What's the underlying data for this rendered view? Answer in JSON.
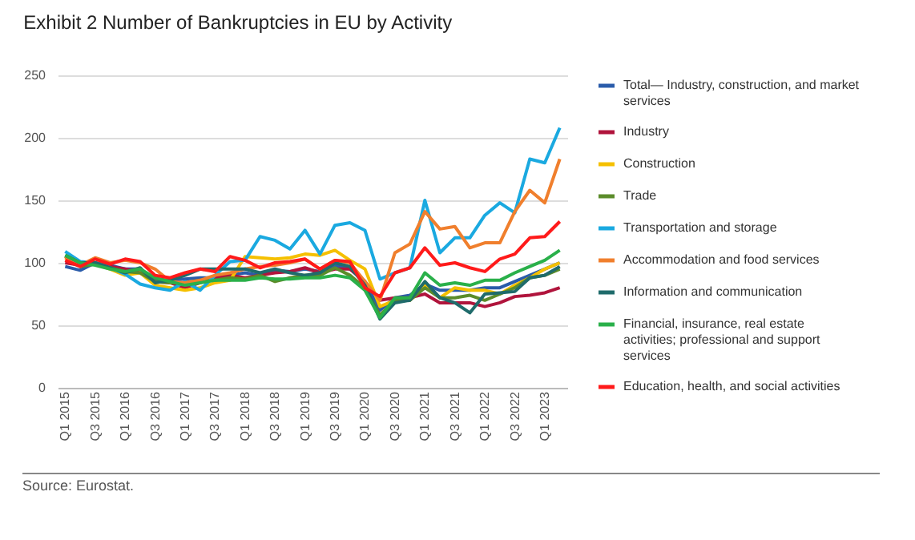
{
  "chart_data": {
    "type": "line",
    "title": "Exhibit 2  Number of Bankruptcies in EU by Activity",
    "annotations": [
      "Source: Eurostat."
    ],
    "categories": [
      "Q1 2015",
      null,
      "Q3 2015",
      null,
      "Q1 2016",
      null,
      "Q3 2016",
      null,
      "Q1 2017",
      null,
      "Q3 2017",
      null,
      "Q1 2018",
      null,
      "Q3 2018",
      null,
      "Q1 2019",
      null,
      "Q3 2019",
      null,
      "Q1 2020",
      null,
      "Q3 2020",
      null,
      "Q1 2021",
      null,
      "Q3 2021",
      null,
      "Q1 2022",
      null,
      "Q3 2022",
      null,
      "Q1 2023",
      null
    ],
    "ylim": [
      0,
      250
    ],
    "yticks": [
      0,
      50,
      100,
      150,
      200,
      250
    ],
    "grid": "y",
    "legend": "right",
    "line_style": "solid",
    "marker": "none",
    "series": [
      {
        "name": "Total— Industry, construction, and market services",
        "color": "#2a5caa",
        "values": [
          97,
          94,
          100,
          98,
          95,
          95,
          87,
          86,
          87,
          88,
          88,
          90,
          92,
          90,
          94,
          93,
          95,
          93,
          98,
          95,
          85,
          62,
          72,
          74,
          83,
          78,
          78,
          78,
          80,
          80,
          85,
          90,
          95,
          100
        ]
      },
      {
        "name": "Industry",
        "color": "#b0143c",
        "values": [
          100,
          98,
          100,
          97,
          95,
          92,
          85,
          84,
          80,
          84,
          88,
          90,
          88,
          90,
          92,
          93,
          96,
          92,
          95,
          95,
          85,
          70,
          72,
          72,
          75,
          68,
          68,
          68,
          65,
          68,
          73,
          74,
          76,
          80
        ]
      },
      {
        "name": "Construction",
        "color": "#f5c000",
        "values": [
          104,
          98,
          99,
          95,
          90,
          92,
          82,
          80,
          78,
          80,
          84,
          86,
          105,
          104,
          103,
          104,
          107,
          106,
          110,
          102,
          95,
          65,
          70,
          70,
          82,
          72,
          80,
          78,
          78,
          75,
          82,
          88,
          95,
          100
        ]
      },
      {
        "name": "Trade",
        "color": "#5b8c2a",
        "values": [
          105,
          97,
          99,
          96,
          93,
          92,
          85,
          84,
          84,
          86,
          86,
          88,
          87,
          90,
          85,
          88,
          90,
          90,
          96,
          90,
          80,
          58,
          70,
          70,
          80,
          72,
          72,
          74,
          70,
          75,
          80,
          88,
          90,
          95
        ]
      },
      {
        "name": "Transportation and storage",
        "color": "#1aa9e0",
        "values": [
          109,
          101,
          100,
          96,
          91,
          83,
          80,
          78,
          85,
          78,
          90,
          101,
          102,
          121,
          118,
          111,
          126,
          107,
          130,
          132,
          126,
          87,
          92,
          96,
          150,
          108,
          120,
          120,
          138,
          148,
          140,
          183,
          180,
          208
        ]
      },
      {
        "name": "Accommodation and food services",
        "color": "#f07f2d",
        "values": [
          105,
          98,
          104,
          100,
          102,
          100,
          95,
          85,
          84,
          86,
          90,
          92,
          95,
          97,
          98,
          100,
          103,
          95,
          102,
          100,
          85,
          70,
          108,
          115,
          141,
          127,
          129,
          112,
          116,
          116,
          141,
          158,
          148,
          183
        ]
      },
      {
        "name": "Information and communication",
        "color": "#1f6b6b",
        "values": [
          106,
          100,
          100,
          96,
          92,
          96,
          84,
          86,
          90,
          95,
          95,
          95,
          95,
          92,
          95,
          92,
          90,
          92,
          100,
          97,
          82,
          55,
          68,
          70,
          85,
          72,
          68,
          60,
          75,
          76,
          77,
          88,
          90,
          97
        ]
      },
      {
        "name": "Financial, insurance, real estate activities; professional and support services",
        "color": "#2ab04a",
        "values": [
          106,
          100,
          98,
          95,
          93,
          95,
          88,
          85,
          82,
          84,
          86,
          86,
          86,
          88,
          87,
          87,
          88,
          88,
          90,
          88,
          78,
          56,
          72,
          72,
          92,
          82,
          84,
          82,
          86,
          86,
          92,
          97,
          102,
          110
        ]
      },
      {
        "name": "Education, health, and social activities",
        "color": "#ff1a1a",
        "values": [
          102,
          97,
          103,
          99,
          103,
          101,
          90,
          88,
          92,
          95,
          93,
          105,
          102,
          96,
          100,
          101,
          103,
          95,
          102,
          101,
          80,
          73,
          92,
          96,
          112,
          98,
          100,
          96,
          93,
          103,
          107,
          120,
          121,
          133
        ]
      }
    ]
  }
}
